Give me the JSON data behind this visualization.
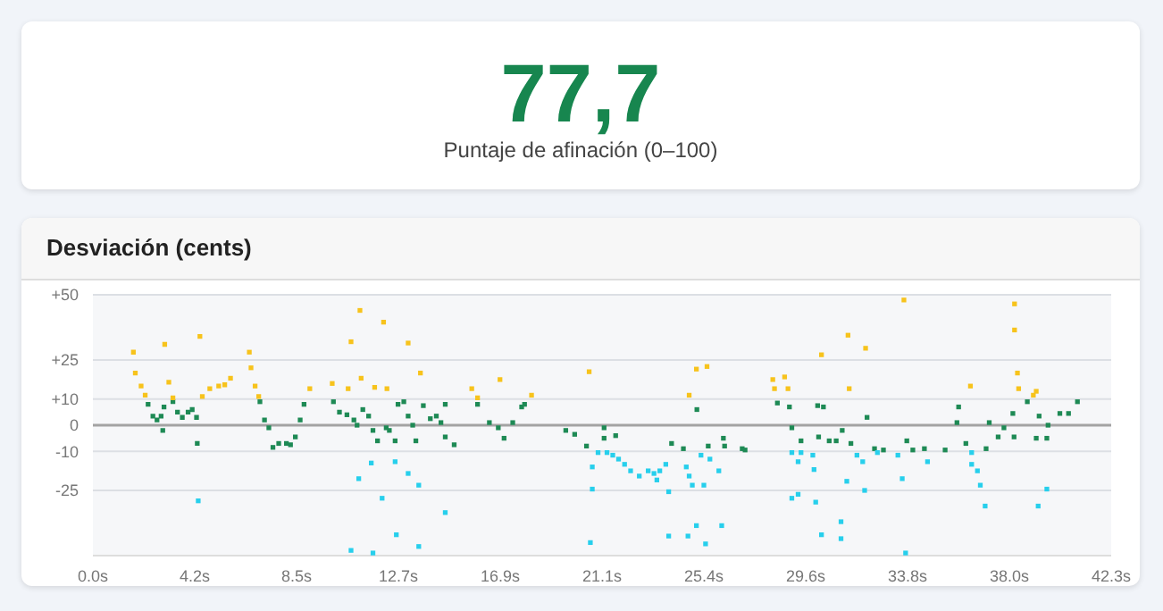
{
  "chart_data": [
    {
      "type": "other",
      "title": "77,7",
      "subtitle": "Puntaje de afinación (0–100)"
    },
    {
      "type": "scatter",
      "title": "Desviación (cents)",
      "marker": "square",
      "grid": "y",
      "xlim": [
        0,
        42.25
      ],
      "ylim": [
        -50,
        50
      ],
      "xticks": [
        {
          "value": 0,
          "label": "0.0s"
        },
        {
          "value": 4.225,
          "label": "4.2s"
        },
        {
          "value": 8.45,
          "label": "8.5s"
        },
        {
          "value": 12.675,
          "label": "12.7s"
        },
        {
          "value": 16.9,
          "label": "16.9s"
        },
        {
          "value": 21.125,
          "label": "21.1s"
        },
        {
          "value": 25.35,
          "label": "25.4s"
        },
        {
          "value": 29.575,
          "label": "29.6s"
        },
        {
          "value": 33.8,
          "label": "33.8s"
        },
        {
          "value": 38.025,
          "label": "38.0s"
        },
        {
          "value": 42.25,
          "label": "42.3s"
        }
      ],
      "yticks": [
        {
          "value": 50,
          "label": "+50"
        },
        {
          "value": 25,
          "label": "+25"
        },
        {
          "value": 10,
          "label": "+10"
        },
        0,
        -10,
        -25
      ],
      "ref_lines": [
        {
          "axis": "y",
          "value": 0,
          "color": "#a3a3a3"
        }
      ],
      "series": [
        {
          "color": "#1e8a55",
          "x": [
            2.29,
            2.49,
            2.66,
            2.83,
            2.95,
            2.9,
            3.32,
            3.51,
            3.71,
            3.95,
            4.12,
            4.3,
            4.33,
            6.93,
            7.12,
            7.3,
            7.47,
            7.71,
            8.03,
            8.2,
            8.4,
            8.6,
            8.76,
            9.98,
            10.23,
            10.54,
            10.83,
            10.96,
            11.2,
            11.44,
            11.62,
            11.81,
            12.17,
            12.3,
            12.54,
            12.66,
            12.9,
            13.08,
            13.27,
            13.4,
            13.71,
            14.0,
            14.25,
            14.44,
            14.62,
            14.62,
            14.99,
            15.96,
            16.45,
            16.82,
            17.06,
            17.42,
            17.79,
            17.91,
            19.62,
            19.99,
            20.48,
            21.21,
            21.21,
            21.69,
            24.01,
            24.5,
            25.06,
            25.53,
            26.16,
            26.21,
            26.94,
            27.06,
            28.4,
            28.9,
            29.0,
            29.38,
            30.07,
            30.31,
            30.11,
            30.55,
            30.84,
            31.09,
            31.45,
            32.12,
            32.43,
            32.8,
            33.77,
            34.02,
            34.5,
            35.36,
            35.85,
            36.22,
            35.92,
            37.06,
            37.19,
            37.56,
            37.8,
            38.17,
            38.22,
            38.77,
            39.14,
            39.58,
            39.26,
            39.63,
            40.12,
            40.48,
            40.85
          ],
          "values": [
            8,
            3.5,
            2,
            3.5,
            7,
            -2,
            9,
            5,
            3,
            5,
            6,
            3,
            -7,
            9,
            2,
            -1,
            -8.5,
            -7,
            -7,
            -7.5,
            -4.5,
            2,
            8,
            9,
            5,
            4,
            2,
            0,
            6,
            3.5,
            -2,
            -6,
            -1,
            -2,
            -6,
            8,
            9,
            3.5,
            0,
            -6,
            7.5,
            2.5,
            3.5,
            1,
            8,
            -4.5,
            -7.5,
            8,
            1,
            -1,
            -5,
            1,
            7,
            8,
            -2,
            -3.5,
            -8,
            -1,
            -5,
            -4,
            -7,
            -9,
            6,
            -8,
            -5,
            -8,
            -9,
            -9.5,
            8.5,
            7,
            -1,
            -6,
            7.5,
            7,
            -4.5,
            -6,
            -6,
            -2,
            -7,
            3,
            -9,
            -9.5,
            -6,
            -9.5,
            -9,
            -9.5,
            1,
            -7,
            7,
            -9,
            1,
            -4.5,
            -1,
            4.5,
            -4.5,
            9,
            -5,
            -5,
            3.5,
            0,
            4.5,
            4.5,
            9
          ]
        },
        {
          "color": "#f7c31c",
          "x": [
            1.68,
            1.76,
            2.0,
            2.17,
            2.98,
            3.15,
            3.32,
            4.44,
            4.54,
            4.85,
            5.22,
            5.47,
            5.71,
            6.49,
            6.56,
            6.73,
            6.88,
            9.0,
            9.93,
            10.59,
            10.71,
            11.08,
            11.13,
            11.69,
            12.06,
            12.2,
            13.08,
            13.59,
            15.72,
            15.96,
            16.89,
            18.2,
            20.59,
            24.74,
            25.04,
            25.48,
            28.21,
            28.28,
            28.7,
            28.84,
            30.23,
            31.33,
            31.38,
            32.06,
            33.65,
            36.41,
            38.24,
            38.24,
            38.36,
            38.41,
            39.02,
            39.14
          ],
          "values": [
            28,
            20,
            15,
            11.5,
            31,
            16.5,
            10.5,
            34,
            11,
            14,
            15,
            15.5,
            18,
            28,
            22,
            15,
            11,
            14,
            16,
            14,
            32,
            44,
            18,
            14.5,
            39.5,
            14,
            31.5,
            20,
            14,
            10.5,
            17.5,
            11.5,
            20.5,
            11.5,
            21.5,
            22.5,
            17.5,
            14,
            18.5,
            14,
            27,
            34.5,
            14,
            29.5,
            48,
            15,
            46.5,
            36.5,
            20,
            14,
            11.5,
            13
          ]
        },
        {
          "color": "#27cfec",
          "x": [
            4.37,
            10.71,
            11.03,
            11.55,
            11.62,
            12.0,
            12.54,
            13.08,
            13.52,
            12.59,
            13.52,
            14.62,
            20.72,
            20.64,
            20.72,
            20.96,
            21.33,
            21.57,
            21.81,
            22.06,
            22.31,
            22.67,
            23.04,
            23.28,
            23.52,
            23.77,
            23.4,
            23.89,
            23.89,
            24.62,
            24.74,
            24.87,
            24.69,
            25.04,
            25.23,
            25.6,
            25.35,
            25.42,
            25.97,
            26.09,
            29.0,
            29.26,
            29.0,
            29.26,
            29.38,
            29.87,
            29.92,
            29.99,
            30.23,
            31.04,
            31.04,
            31.28,
            31.7,
            31.94,
            32.02,
            32.55,
            33.4,
            33.58,
            33.72,
            34.63,
            36.46,
            36.46,
            36.7,
            36.82,
            37.02,
            39.22,
            39.58
          ],
          "values": [
            -29,
            -48,
            -20.5,
            -14.5,
            -49,
            -28,
            -14,
            -18.5,
            -23,
            -42,
            -46.5,
            -33.5,
            -16,
            -45,
            -24.5,
            -10.5,
            -10.5,
            -11.5,
            -13,
            -15,
            -17.5,
            -19.5,
            -17.5,
            -18.5,
            -17.5,
            -15,
            -21,
            -25.5,
            -42.5,
            -16,
            -19.5,
            -23,
            -42.5,
            -38.5,
            -11.5,
            -13,
            -23,
            -45.5,
            -17.5,
            -38.5,
            -10.5,
            -14,
            -28,
            -26.5,
            -10.5,
            -11.5,
            -17,
            -29.5,
            -42,
            -37,
            -43.5,
            -21.5,
            -11.5,
            -14,
            -25,
            -10.5,
            -11.5,
            -20.5,
            -49,
            -14,
            -10.5,
            -15,
            -17.5,
            -23,
            -31,
            -31,
            -24.5
          ]
        }
      ]
    }
  ]
}
